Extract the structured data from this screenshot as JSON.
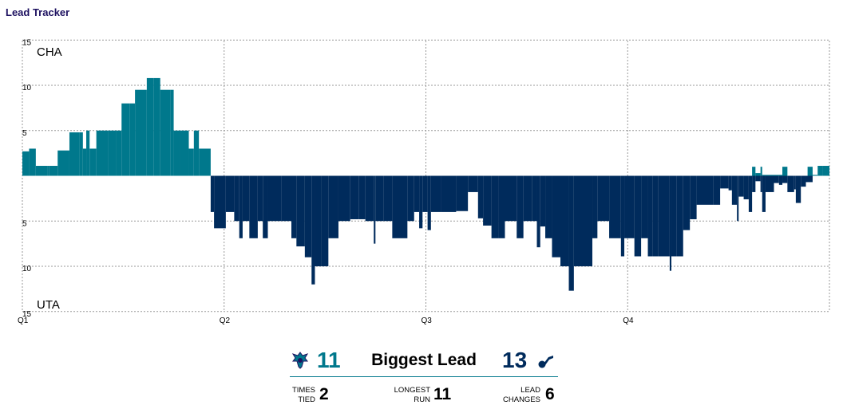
{
  "title": "Lead Tracker",
  "colors": {
    "home": "#00788c",
    "away": "#002b5c",
    "title": "#1d1160"
  },
  "chart_data": {
    "type": "bar",
    "ylim": [
      -15,
      15
    ],
    "yticks": [
      15,
      10,
      5,
      0,
      5,
      10,
      15
    ],
    "team_top": "CHA",
    "team_bottom": "UTA",
    "quarters": [
      "Q1",
      "Q2",
      "Q3",
      "Q4"
    ],
    "x_range": [
      0,
      48
    ],
    "series": [
      {
        "name": "CHA",
        "color": "#00788c",
        "points": [
          [
            0,
            2.7
          ],
          [
            0.4,
            3
          ],
          [
            0.8,
            1.1
          ],
          [
            1.5,
            1.1
          ],
          [
            1.6,
            1.1
          ],
          [
            2.1,
            2.8
          ],
          [
            2.8,
            4.8
          ],
          [
            3.4,
            4.8
          ],
          [
            3.6,
            3
          ],
          [
            3.8,
            5
          ],
          [
            4.0,
            3
          ],
          [
            4.4,
            5
          ],
          [
            5.1,
            5
          ],
          [
            5.6,
            5
          ],
          [
            5.9,
            8
          ],
          [
            6.4,
            8
          ],
          [
            6.7,
            9.5
          ],
          [
            7.4,
            10.8
          ],
          [
            7.8,
            10.8
          ],
          [
            8.2,
            9.5
          ],
          [
            8.8,
            9.5
          ],
          [
            9.0,
            5
          ],
          [
            9.4,
            5
          ],
          [
            9.9,
            3
          ],
          [
            10.2,
            5
          ],
          [
            10.5,
            3
          ],
          [
            11.2,
            0
          ]
        ]
      },
      {
        "name": "UTA",
        "color": "#002b5c",
        "points": [
          [
            11.2,
            -4
          ],
          [
            11.4,
            -5.8
          ],
          [
            12.1,
            -4
          ],
          [
            12.6,
            -5
          ],
          [
            12.9,
            -6.9
          ],
          [
            13.1,
            -5
          ],
          [
            13.5,
            -6.9
          ],
          [
            14.0,
            -5
          ],
          [
            14.3,
            -6.9
          ],
          [
            14.6,
            -5
          ],
          [
            15.4,
            -5
          ],
          [
            16.0,
            -6.9
          ],
          [
            16.3,
            -7.8
          ],
          [
            16.8,
            -9
          ],
          [
            17.2,
            -12
          ],
          [
            17.4,
            -10
          ],
          [
            17.8,
            -10
          ],
          [
            18.2,
            -6.9
          ],
          [
            18.8,
            -5
          ],
          [
            19.5,
            -4.8
          ],
          [
            20.0,
            -4.8
          ],
          [
            20.4,
            -5
          ],
          [
            20.9,
            -7.5
          ],
          [
            21.0,
            -5
          ],
          [
            21.5,
            -5
          ],
          [
            22.0,
            -6.9
          ],
          [
            22.9,
            -5
          ],
          [
            23.3,
            -4
          ],
          [
            23.6,
            -5.8
          ],
          [
            23.8,
            -4
          ],
          [
            24.1,
            -6
          ],
          [
            24.3,
            -4
          ],
          [
            24.9,
            -4
          ],
          [
            25.8,
            -3.9
          ],
          [
            26.5,
            -1.8
          ],
          [
            27.1,
            -4.7
          ],
          [
            27.4,
            -5.5
          ],
          [
            27.9,
            -6.9
          ],
          [
            28.3,
            -6.9
          ],
          [
            28.7,
            -5
          ],
          [
            29.4,
            -6.9
          ],
          [
            29.8,
            -5
          ],
          [
            30.3,
            -5
          ],
          [
            30.6,
            -7.9
          ],
          [
            30.8,
            -5.6
          ],
          [
            31.1,
            -6.9
          ],
          [
            31.5,
            -9
          ],
          [
            32.0,
            -10
          ],
          [
            32.5,
            -12.7
          ],
          [
            32.8,
            -10
          ],
          [
            33.9,
            -6.9
          ],
          [
            34.2,
            -5
          ],
          [
            34.9,
            -6.9
          ],
          [
            35.6,
            -8.9
          ],
          [
            35.8,
            -6.9
          ],
          [
            36.4,
            -8.9
          ],
          [
            36.8,
            -6.9
          ],
          [
            37.2,
            -8.9
          ],
          [
            37.5,
            -8.9
          ],
          [
            37.8,
            -8.9
          ],
          [
            38.5,
            -10.5
          ],
          [
            38.6,
            -8.9
          ],
          [
            38.9,
            -8.9
          ],
          [
            39.3,
            -6
          ],
          [
            39.7,
            -4.8
          ],
          [
            40.1,
            -3.2
          ],
          [
            41.1,
            -3.2
          ],
          [
            41.5,
            -1.4
          ],
          [
            42.0,
            -1.6
          ],
          [
            42.2,
            -3.2
          ],
          [
            42.5,
            -5
          ],
          [
            42.6,
            -2.3
          ],
          [
            42.9,
            -2.6
          ],
          [
            43.2,
            -4
          ],
          [
            43.4,
            -1.8
          ],
          [
            43.6,
            -0.6
          ],
          [
            43.9,
            -1.8
          ],
          [
            44.0,
            -4
          ],
          [
            44.2,
            -1.8
          ],
          [
            44.7,
            -0.8
          ],
          [
            45.0,
            -1
          ],
          [
            45.2,
            -0.8
          ],
          [
            45.5,
            -1.8
          ],
          [
            45.9,
            -1.5
          ],
          [
            46.0,
            -3
          ],
          [
            46.3,
            -1.2
          ],
          [
            46.6,
            -0.7
          ],
          [
            47.0,
            -0.1
          ]
        ]
      },
      {
        "name": "CHA-late",
        "color": "#00788c",
        "points": [
          [
            43.4,
            1
          ],
          [
            43.6,
            0.3
          ],
          [
            43.9,
            1
          ],
          [
            44.0,
            0.1
          ],
          [
            44.7,
            0.1
          ],
          [
            45.2,
            1
          ],
          [
            45.5,
            0
          ],
          [
            46.7,
            1
          ],
          [
            47.0,
            0.1
          ],
          [
            47.3,
            1.1
          ],
          [
            47.6,
            1.1
          ],
          [
            48.0,
            1.1
          ],
          [
            48.0,
            1
          ]
        ]
      }
    ]
  },
  "stats": {
    "big_home": "11",
    "big_label": "Biggest Lead",
    "big_away": "13",
    "times_tied_label_1": "TIMES",
    "times_tied_label_2": "TIED",
    "times_tied": "2",
    "longest_run_label_1": "LONGEST",
    "longest_run_label_2": "RUN",
    "longest_run": "11",
    "lead_changes_label_1": "LEAD",
    "lead_changes_label_2": "CHANGES",
    "lead_changes": "6"
  }
}
